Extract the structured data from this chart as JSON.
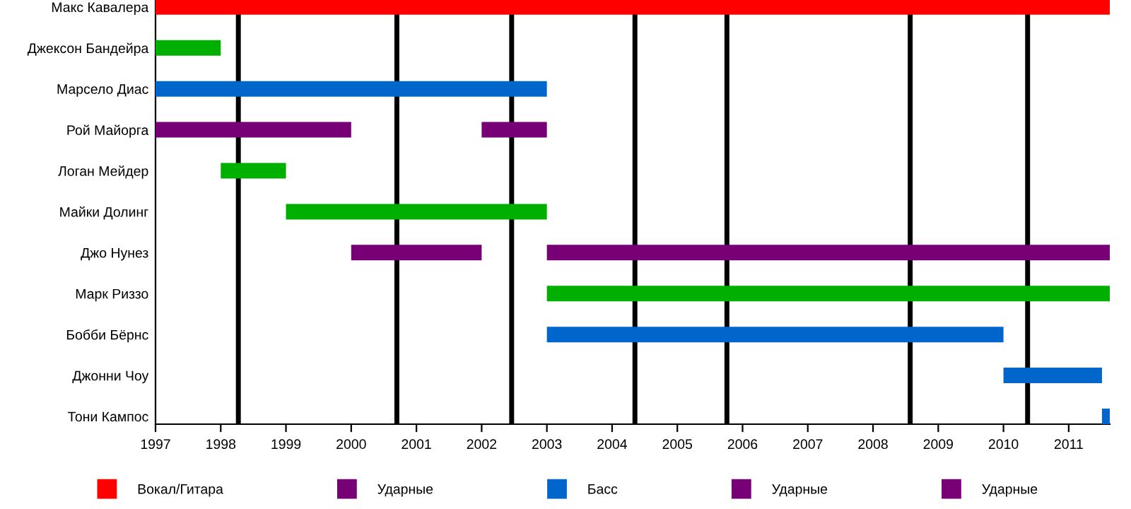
{
  "chart_data": {
    "type": "bar",
    "orientation": "horizontal",
    "legend": "bottom",
    "grid": false,
    "categories": [
      "Макс Кавалера",
      "Джексон Бандейра",
      "Марсело Диас",
      "Рой Майорга",
      "Логан Мейдер",
      "Майки Долинг",
      "Джо Нунез",
      "Марк Риззо",
      "Бобби Бёрнс",
      "Джонни Чоу",
      "Тони Кампос"
    ],
    "xlim": [
      1997,
      2011.63
    ],
    "xticks": [
      1997,
      1998,
      1999,
      2000,
      2001,
      2002,
      2003,
      2004,
      2005,
      2006,
      2007,
      2008,
      2009,
      2010,
      2011
    ],
    "series": [
      {
        "name": "Вокал/Гитара",
        "color": "#ff0000",
        "base": [
          1997,
          null,
          null,
          null,
          null,
          null,
          null,
          null,
          null,
          null,
          null
        ],
        "values": [
          14.63,
          null,
          null,
          null,
          null,
          null,
          null,
          null,
          null,
          null,
          null
        ]
      },
      {
        "name": "Ударные",
        "color": "#770077",
        "base": [
          null,
          null,
          null,
          1997,
          null,
          null,
          null,
          null,
          null,
          null,
          null
        ],
        "values": [
          null,
          null,
          null,
          3,
          null,
          null,
          null,
          null,
          null,
          null,
          null
        ]
      },
      {
        "name": "Басс",
        "color": "#0066cc",
        "base": [
          null,
          null,
          1997,
          null,
          null,
          null,
          null,
          null,
          2003,
          2010,
          2011.51
        ],
        "values": [
          null,
          null,
          6,
          null,
          null,
          null,
          null,
          null,
          7,
          1.51,
          0.12
        ]
      },
      {
        "name": "Ударные",
        "color": "#770077",
        "base": [
          null,
          null,
          null,
          2002,
          null,
          null,
          2000,
          null,
          null,
          null,
          null
        ],
        "values": [
          null,
          null,
          null,
          1,
          null,
          null,
          2,
          null,
          null,
          null,
          null
        ]
      },
      {
        "name": "Ударные",
        "color": "#770077",
        "base": [
          null,
          null,
          null,
          null,
          null,
          null,
          2003,
          null,
          null,
          null,
          null
        ],
        "values": [
          null,
          null,
          null,
          null,
          null,
          null,
          8.63,
          null,
          null,
          null,
          null
        ]
      },
      {
        "color": "#00b000",
        "base": [
          null,
          1997,
          null,
          null,
          1998,
          1999,
          null,
          2003,
          null,
          null,
          null
        ],
        "values": [
          null,
          1,
          null,
          null,
          1,
          4,
          null,
          8.63,
          null,
          null,
          null
        ]
      }
    ],
    "ref_lines": [
      {
        "axis": "x",
        "value": 1998.27,
        "color": "#000000"
      },
      {
        "axis": "x",
        "value": 2000.7,
        "color": "#000000"
      },
      {
        "axis": "x",
        "value": 2002.46,
        "color": "#000000"
      },
      {
        "axis": "x",
        "value": 2004.35,
        "color": "#000000"
      },
      {
        "axis": "x",
        "value": 2005.76,
        "color": "#000000"
      },
      {
        "axis": "x",
        "value": 2008.57,
        "color": "#000000"
      },
      {
        "axis": "x",
        "value": 2010.37,
        "color": "#000000"
      }
    ]
  }
}
